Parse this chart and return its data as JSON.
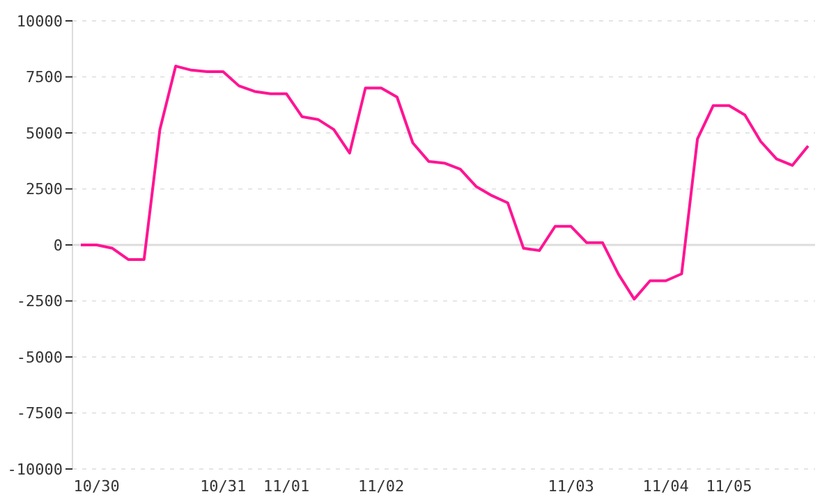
{
  "chart_data": {
    "type": "line",
    "categories": [
      null,
      "10/30",
      null,
      null,
      null,
      null,
      null,
      null,
      null,
      "10/31",
      null,
      null,
      null,
      "11/01",
      null,
      null,
      null,
      null,
      null,
      "11/02",
      null,
      null,
      null,
      null,
      null,
      null,
      null,
      null,
      null,
      null,
      null,
      "11/03",
      null,
      null,
      null,
      null,
      null,
      "11/04",
      null,
      null,
      null,
      "11/05",
      null,
      null,
      null,
      null,
      null
    ],
    "series": [
      {
        "color": "#ff1493",
        "values": [
          0,
          0,
          -150,
          -650,
          -650,
          5150,
          7980,
          7800,
          7730,
          7730,
          7100,
          6850,
          6750,
          6750,
          5720,
          5600,
          5150,
          4100,
          7000,
          7000,
          6600,
          4550,
          3730,
          3650,
          3380,
          2610,
          2200,
          1880,
          -150,
          -250,
          830,
          830,
          100,
          100,
          -1300,
          -2420,
          -1600,
          -1600,
          -1290,
          4730,
          6220,
          6220,
          5800,
          4620,
          3840,
          3550,
          4420
        ]
      }
    ],
    "ylim": [
      -10000,
      10000
    ],
    "yticks": [
      -10000,
      -7500,
      -5000,
      -2500,
      0,
      2500,
      5000,
      7500,
      10000
    ],
    "grid": "y",
    "legend": false,
    "marker": "none",
    "line_style": "solid",
    "ref_lines": [
      {
        "axis": "y",
        "value": 0,
        "color": "#dddddd"
      }
    ]
  }
}
